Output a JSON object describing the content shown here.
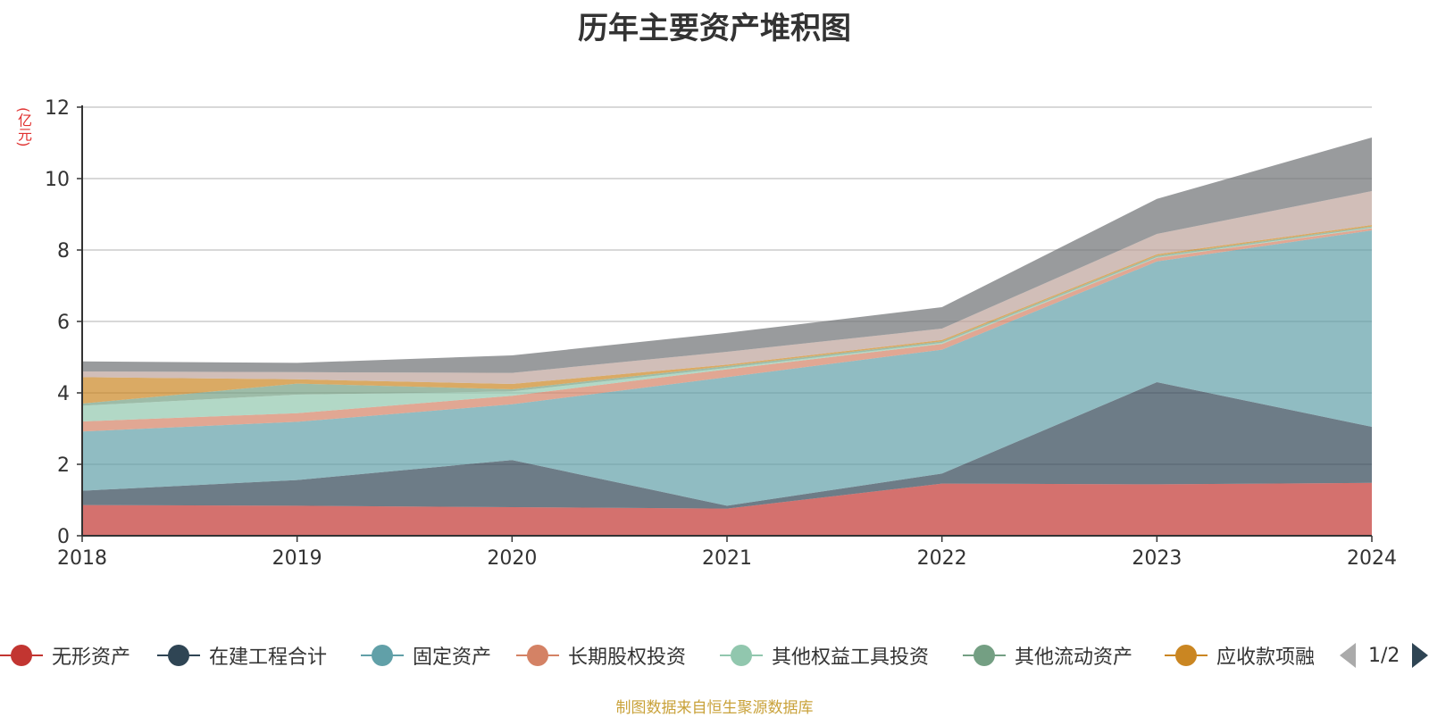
{
  "title": "历年主要资产堆积图",
  "unit_label": "(亿元)",
  "source_note": "制图数据来自恒生聚源数据库",
  "legend": {
    "page_indicator": "1/2",
    "items": [
      {
        "label": "无形资产",
        "color": "#c23531"
      },
      {
        "label": "在建工程合计",
        "color": "#2f4554"
      },
      {
        "label": "固定资产",
        "color": "#61a0a8"
      },
      {
        "label": "长期股权投资",
        "color": "#d48265"
      },
      {
        "label": "其他权益工具投资",
        "color": "#91c7ae"
      },
      {
        "label": "其他流动资产",
        "color": "#749f83"
      },
      {
        "label": "应收款项融",
        "color": "#ca8622"
      }
    ]
  },
  "chart_data": {
    "type": "area",
    "stacked": true,
    "title": "历年主要资产堆积图",
    "ylabel": "(亿元)",
    "xlabel": "",
    "x": [
      "2018",
      "2019",
      "2020",
      "2021",
      "2022",
      "2023",
      "2024"
    ],
    "ylim": [
      0,
      12
    ],
    "yticks": [
      0,
      2,
      4,
      6,
      8,
      10,
      12
    ],
    "grid": true,
    "legend_position": "bottom",
    "series": [
      {
        "name": "无形资产",
        "color": "#c23531",
        "values": [
          0.86,
          0.84,
          0.8,
          0.76,
          1.46,
          1.44,
          1.48
        ]
      },
      {
        "name": "在建工程合计",
        "color": "#2f4554",
        "values": [
          0.4,
          0.72,
          1.32,
          0.08,
          0.28,
          2.86,
          1.57
        ]
      },
      {
        "name": "固定资产",
        "color": "#61a0a8",
        "values": [
          1.66,
          1.63,
          1.56,
          3.6,
          3.47,
          3.38,
          5.5
        ]
      },
      {
        "name": "长期股权投资",
        "color": "#d48265",
        "values": [
          0.28,
          0.24,
          0.24,
          0.22,
          0.16,
          0.1,
          0.06
        ]
      },
      {
        "name": "其他权益工具投资",
        "color": "#91c7ae",
        "values": [
          0.44,
          0.52,
          0.12,
          0.04,
          0.03,
          0.02,
          0.02
        ]
      },
      {
        "name": "其他流动资产",
        "color": "#749f83",
        "values": [
          0.06,
          0.31,
          0.06,
          0.05,
          0.04,
          0.04,
          0.03
        ]
      },
      {
        "name": "应收款项融",
        "color": "#ca8622",
        "values": [
          0.74,
          0.12,
          0.15,
          0.04,
          0.04,
          0.04,
          0.04
        ]
      },
      {
        "color": "#bda29a",
        "values": [
          0.16,
          0.2,
          0.31,
          0.36,
          0.32,
          0.57,
          0.95
        ]
      },
      {
        "color": "#6e7074",
        "values": [
          0.28,
          0.26,
          0.49,
          0.53,
          0.6,
          0.98,
          1.5
        ]
      }
    ]
  }
}
